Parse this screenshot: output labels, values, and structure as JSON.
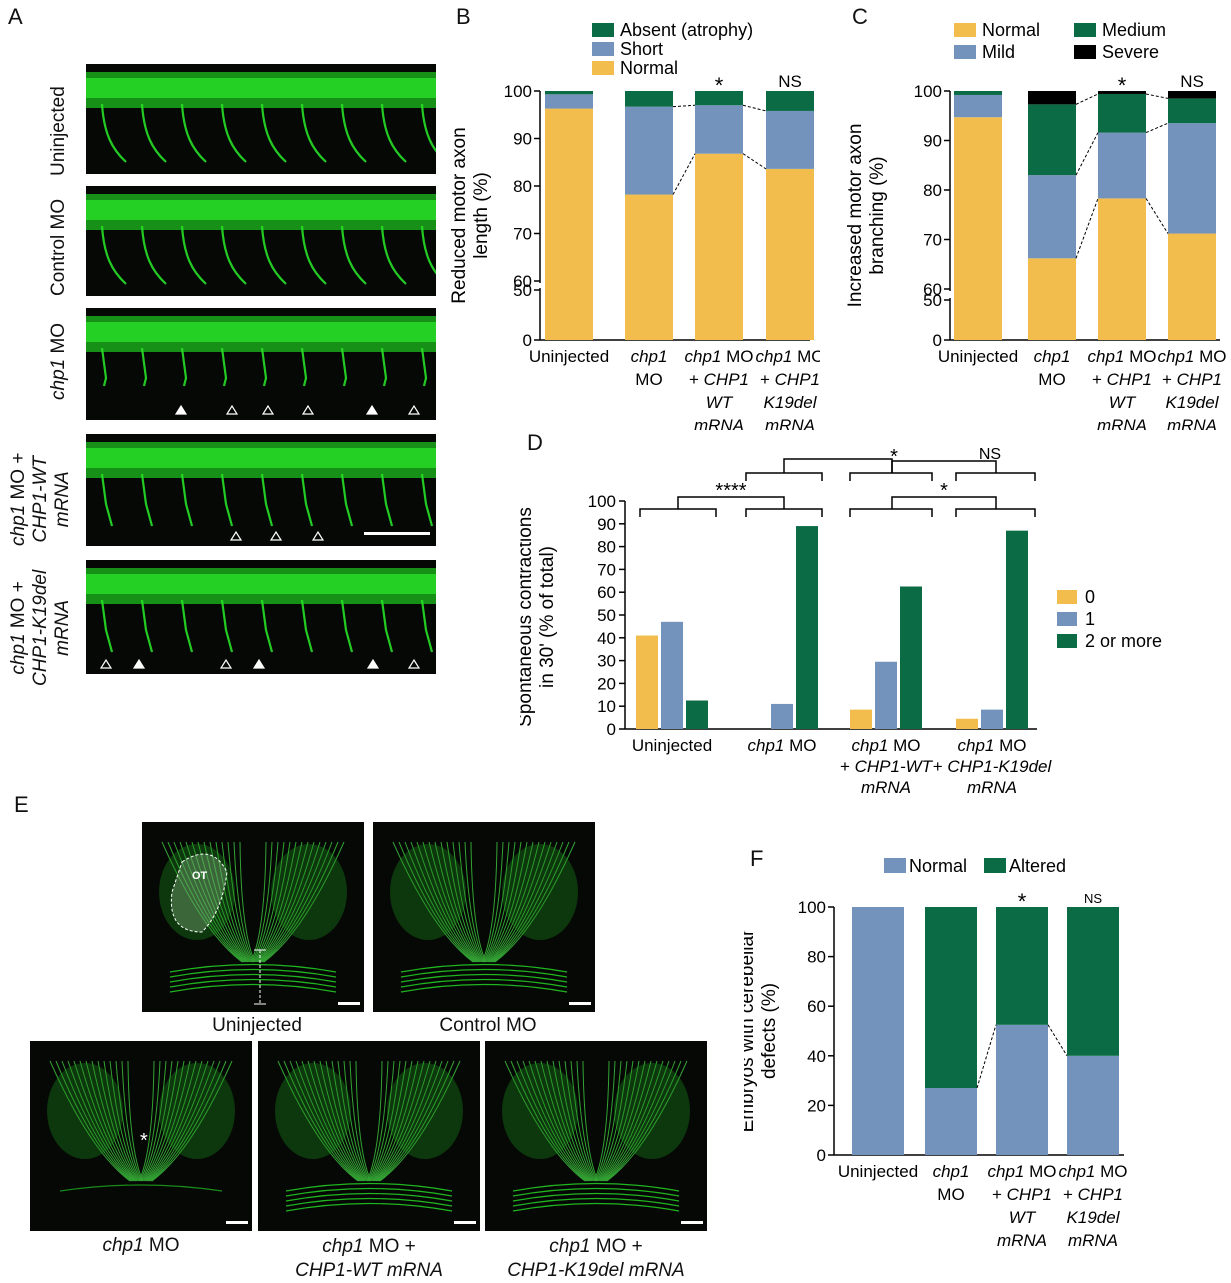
{
  "panel_letters": {
    "a": "A",
    "b": "B",
    "c": "C",
    "d": "D",
    "e": "E",
    "f": "F"
  },
  "colors": {
    "normal": "#f2bd4c",
    "short": "#7393bd",
    "absent": "#0b6b45",
    "severe": "#000000",
    "micro_bg": "#050805",
    "fluor": "#28e028"
  },
  "panel_a": {
    "rows": [
      {
        "label_plain": "Uninjected",
        "label_italic": "",
        "label_line2": ""
      },
      {
        "label_plain": "Control MO",
        "label_italic": "",
        "label_line2": ""
      },
      {
        "label_plain": " MO",
        "label_italic": "chp1",
        "label_line2": ""
      },
      {
        "label_plain": " MO +",
        "label_italic": "chp1",
        "label_line2": "CHP1-WT",
        "label_line3": "mRNA"
      },
      {
        "label_plain": " MO +",
        "label_italic": "chp1",
        "label_line2": "CHP1-K19del",
        "label_line3": "mRNA"
      }
    ],
    "arrowheads": {
      "row3": [
        "filled",
        "open",
        "open",
        "open",
        "filled",
        "open"
      ],
      "row4": [
        "open",
        "open",
        "open"
      ],
      "row5": [
        "open",
        "filled",
        "open",
        "filled",
        "filled",
        "open"
      ]
    }
  },
  "chart_data": [
    {
      "panel": "B",
      "type": "bar",
      "stacked": true,
      "ylabel": "Reduced motor axon length (%)",
      "categories": [
        "Uninjected",
        "chp1 MO",
        "chp1 MO + CHP1 WT mRNA",
        "chp1 MO + CHP1 K19del mRNA"
      ],
      "category_lines": [
        [
          "Uninjected"
        ],
        [
          "chp1",
          "MO"
        ],
        [
          "chp1 MO",
          "+ CHP1",
          "WT",
          "mRNA"
        ],
        [
          "chp1 MO",
          "+ CHP1",
          "K19del",
          "mRNA"
        ]
      ],
      "series": [
        {
          "name": "Normal",
          "color": "#f2bd4c",
          "values": [
            96.3,
            78.2,
            86.8,
            83.6
          ]
        },
        {
          "name": "Short",
          "color": "#7393bd",
          "values": [
            3.0,
            18.5,
            10.2,
            12.2
          ]
        },
        {
          "name": "Absent (atrophy)",
          "color": "#0b6b45",
          "values": [
            0.7,
            3.3,
            3.0,
            4.2
          ]
        }
      ],
      "yticks": [
        0,
        50,
        60,
        70,
        80,
        90,
        100
      ],
      "axis_break": [
        50,
        60
      ],
      "significance": [
        "",
        "",
        "*",
        "NS"
      ],
      "legend": [
        "Absent (atrophy)",
        "Short",
        "Normal"
      ]
    },
    {
      "panel": "C",
      "type": "bar",
      "stacked": true,
      "ylabel": "Increased motor axon branching (%)",
      "categories": [
        "Uninjected",
        "chp1 MO",
        "chp1 MO + CHP1 WT mRNA",
        "chp1 MO + CHP1 K19del mRNA"
      ],
      "category_lines": [
        [
          "Uninjected"
        ],
        [
          "chp1",
          "MO"
        ],
        [
          "chp1 MO",
          "+ CHP1",
          "WT",
          "mRNA"
        ],
        [
          "chp1 MO",
          "+ CHP1",
          "K19del",
          "mRNA"
        ]
      ],
      "series": [
        {
          "name": "Normal",
          "color": "#f2bd4c",
          "values": [
            94.7,
            66.2,
            78.3,
            71.2
          ]
        },
        {
          "name": "Mild",
          "color": "#7393bd",
          "values": [
            4.5,
            16.8,
            13.3,
            22.3
          ]
        },
        {
          "name": "Medium",
          "color": "#0b6b45",
          "values": [
            0.8,
            14.3,
            7.8,
            5.0
          ]
        },
        {
          "name": "Severe",
          "color": "#000000",
          "values": [
            0,
            2.7,
            0.6,
            1.5
          ]
        }
      ],
      "yticks": [
        0,
        50,
        60,
        70,
        80,
        90,
        100
      ],
      "axis_break": [
        50,
        60
      ],
      "significance": [
        "",
        "",
        "*",
        "NS"
      ],
      "legend": [
        "Normal",
        "Medium",
        "Mild",
        "Severe"
      ]
    },
    {
      "panel": "D",
      "type": "bar",
      "stacked": false,
      "ylabel": "Spontaneous contractions in 30' (% of total)",
      "categories": [
        "Uninjected",
        "chp1 MO",
        "chp1 MO + CHP1-WT mRNA",
        "chp1 MO + CHP1-K19del mRNA"
      ],
      "category_lines": [
        [
          "Uninjected"
        ],
        [
          "chp1 MO"
        ],
        [
          "chp1 MO",
          "+ CHP1-WT",
          "mRNA"
        ],
        [
          "chp1 MO",
          "+ CHP1-K19del",
          "mRNA"
        ]
      ],
      "series": [
        {
          "name": "0",
          "color": "#f2bd4c",
          "values": [
            41,
            0,
            8.5,
            4.5
          ]
        },
        {
          "name": "1",
          "color": "#7393bd",
          "values": [
            47,
            11,
            29.5,
            8.5
          ]
        },
        {
          "name": "2 or more",
          "color": "#0b6b45",
          "values": [
            12.5,
            89,
            62.5,
            87
          ]
        }
      ],
      "ylim": [
        0,
        100
      ],
      "yticks": [
        0,
        10,
        20,
        30,
        40,
        50,
        60,
        70,
        80,
        90,
        100
      ],
      "significance_labels": [
        "****",
        "*",
        "NS",
        "*"
      ],
      "legend": [
        "0",
        "1",
        "2 or more"
      ]
    },
    {
      "panel": "F",
      "type": "bar",
      "stacked": true,
      "ylabel": "Embryos with cerebellar defects (%)",
      "categories": [
        "Uninjected",
        "chp1 MO",
        "chp1 MO + CHP1 WT mRNA",
        "chp1 MO + CHP1 K19del mRNA"
      ],
      "category_lines": [
        [
          "Uninjected"
        ],
        [
          "chp1",
          "MO"
        ],
        [
          "chp1 MO",
          "+ CHP1",
          "WT",
          "mRNA"
        ],
        [
          "chp1 MO",
          "+ CHP1",
          "K19del",
          "mRNA"
        ]
      ],
      "series": [
        {
          "name": "Normal",
          "color": "#7393bd",
          "values": [
            100,
            27,
            52.5,
            40
          ]
        },
        {
          "name": "Altered",
          "color": "#0b6b45",
          "values": [
            0,
            73,
            47.5,
            60
          ]
        }
      ],
      "ylim": [
        0,
        100
      ],
      "yticks": [
        0,
        20,
        40,
        60,
        80,
        100
      ],
      "significance": [
        "",
        "",
        "*",
        "NS"
      ],
      "legend": [
        "Normal",
        "Altered"
      ]
    }
  ],
  "panel_e": {
    "ot_label": "OT",
    "captions": [
      {
        "italic": "",
        "plain": "Uninjected",
        "line2": ""
      },
      {
        "italic": "",
        "plain": "Control MO",
        "line2": ""
      },
      {
        "italic": "chp1",
        "plain": " MO",
        "line2": ""
      },
      {
        "italic": "chp1",
        "plain": " MO +",
        "line2": "CHP1-WT mRNA"
      },
      {
        "italic": "chp1",
        "plain": " MO +",
        "line2": "CHP1-K19del mRNA"
      }
    ],
    "asterisk": "*"
  }
}
